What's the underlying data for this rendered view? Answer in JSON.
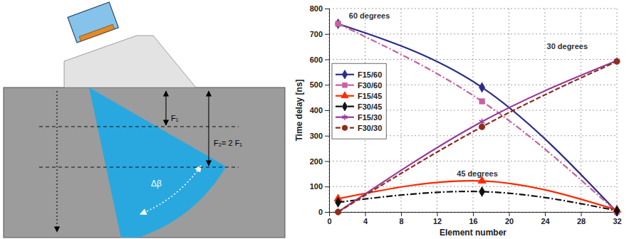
{
  "diagram": {
    "f1_label": "F₁",
    "f2_label": "F₂= 2 F₁",
    "angle_label": "Δβ"
  },
  "chart_data": {
    "type": "line",
    "x": [
      1,
      17,
      32
    ],
    "series": [
      {
        "name": "F15/60",
        "color": "#2b2b8a",
        "line_style": "solid",
        "marker": "diamond",
        "values": [
          740,
          490,
          0
        ]
      },
      {
        "name": "F30/60",
        "color": "#c9619f",
        "line_style": "dashdot",
        "marker": "square",
        "values": [
          740,
          435,
          0
        ]
      },
      {
        "name": "F15/45",
        "color": "#ff2a00",
        "line_style": "solid",
        "marker": "triangle",
        "values": [
          52,
          122,
          8
        ]
      },
      {
        "name": "F30/45",
        "color": "#111111",
        "line_style": "dashdot",
        "marker": "diamond",
        "values": [
          38,
          80,
          5
        ]
      },
      {
        "name": "F15/30",
        "color": "#9a3a9a",
        "line_style": "solid",
        "marker": "asterisk",
        "values": [
          0,
          355,
          595
        ]
      },
      {
        "name": "F30/30",
        "color": "#8b2e1e",
        "line_style": "dashed",
        "marker": "circle",
        "values": [
          0,
          335,
          592
        ]
      }
    ],
    "xlabel": "Element number",
    "ylabel": "Time delay [ns]",
    "xlim": [
      0,
      32
    ],
    "xticks": [
      0,
      4,
      8,
      12,
      16,
      20,
      24,
      28,
      32
    ],
    "ylim": [
      0,
      800
    ],
    "yticks": [
      0,
      100,
      200,
      300,
      400,
      500,
      600,
      700,
      800
    ],
    "grid": true,
    "legend": "left",
    "annotations": [
      {
        "text": "60 degrees",
        "x": 2.2,
        "y": 762
      },
      {
        "text": "30 degrees",
        "x": 24.2,
        "y": 640
      },
      {
        "text": "45 degrees",
        "x": 14.2,
        "y": 140
      }
    ]
  }
}
